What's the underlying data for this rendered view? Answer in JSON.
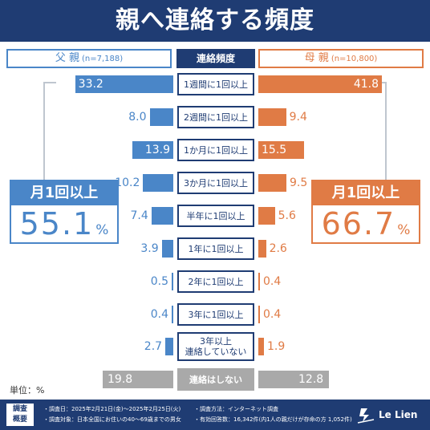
{
  "title": "親へ連絡する頻度",
  "header": {
    "father_label": "父 親",
    "father_n": "(n=7,188)",
    "center_label": "連絡頻度",
    "mother_label": "母 親",
    "mother_n": "(n=10,800)"
  },
  "summary": {
    "father": {
      "label": "月1回以上",
      "value": "55.1",
      "unit": "%"
    },
    "mother": {
      "label": "月1回以上",
      "value": "66.7",
      "unit": "%"
    }
  },
  "unit_label": "単位：%",
  "colors": {
    "father": "#4a86c8",
    "mother": "#e07b45",
    "navy": "#1f3c73",
    "gray": "#a9a9a9"
  },
  "chart_data": {
    "type": "bar",
    "orientation": "horizontal-diverging",
    "categories": [
      "1週間に1回以上",
      "2週間に1回以上",
      "1か月に1回以上",
      "3か月に1回以上",
      "半年に1回以上",
      "1年に1回以上",
      "2年に1回以上",
      "3年に1回以上",
      "3年以上\n連絡していない",
      "連絡はしない"
    ],
    "series": [
      {
        "name": "父 親",
        "values": [
          33.2,
          8.0,
          13.9,
          10.2,
          7.4,
          3.9,
          0.5,
          0.4,
          2.7,
          19.8
        ],
        "labels": [
          "33.2",
          "8.0",
          "13.9",
          "10.2",
          "7.4",
          "3.9",
          "0.5",
          "0.4",
          "2.7",
          "19.8"
        ]
      },
      {
        "name": "母 親",
        "values": [
          41.8,
          9.4,
          15.5,
          9.5,
          5.6,
          2.6,
          0.4,
          0.4,
          1.9,
          12.8
        ],
        "labels": [
          "41.8",
          "9.4",
          "15.5",
          "9.5",
          "5.6",
          "2.6",
          "0.4",
          "0.4",
          "1.9",
          "12.8"
        ]
      }
    ],
    "xlim": [
      0,
      45
    ]
  },
  "footer": {
    "tag": "調査\n概要",
    "survey_date": "・調査日：2025年2月21日(金)～2025年2月25日(火)",
    "survey_method": "・調査方法：インターネット調査",
    "survey_target": "・調査対象：日本全国にお住いの40～69歳までの男女",
    "valid_answers": "・有効回答数：16,342件(内1人の親だけが存命の方 1,052件)",
    "logo_text": "Le Lien"
  }
}
